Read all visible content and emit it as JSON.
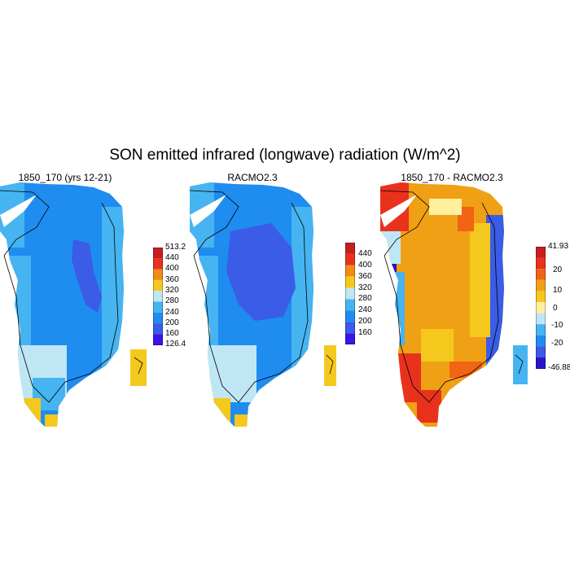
{
  "title": "SON emitted infrared (longwave) radiation (W/m^2)",
  "panels": [
    {
      "title": "1850_170 (yrs 12-21)",
      "colorbar": {
        "colors": [
          "#3a14e8",
          "#3a5ce6",
          "#1f8cf0",
          "#46b4f0",
          "#bfe6f5",
          "#f5c81e",
          "#f08c14",
          "#e8321e",
          "#c81e1e"
        ],
        "labels": [
          "126.4",
          "160",
          "200",
          "240",
          "280",
          "320",
          "360",
          "400",
          "440",
          "513.2"
        ]
      }
    },
    {
      "title": "RACMO2.3",
      "colorbar": {
        "colors": [
          "#3a14e8",
          "#3a5ce6",
          "#1f8cf0",
          "#46b4f0",
          "#bfe6f5",
          "#f5c81e",
          "#f08c14",
          "#e8321e",
          "#c81e1e"
        ],
        "labels": [
          "160",
          "200",
          "240",
          "280",
          "320",
          "360",
          "400",
          "440"
        ]
      }
    },
    {
      "title": "1850_170 - RACMO2.3",
      "colorbar": {
        "colors": [
          "#2814c8",
          "#3a5ce6",
          "#1f8cf0",
          "#46b4f0",
          "#bfe6f5",
          "#fff0a0",
          "#f5c81e",
          "#f0a014",
          "#f06414",
          "#e8321e",
          "#c81e1e"
        ],
        "labels": [
          "41.93",
          "20",
          "10",
          "0",
          "-10",
          "-20",
          "-46.88"
        ]
      }
    }
  ]
}
